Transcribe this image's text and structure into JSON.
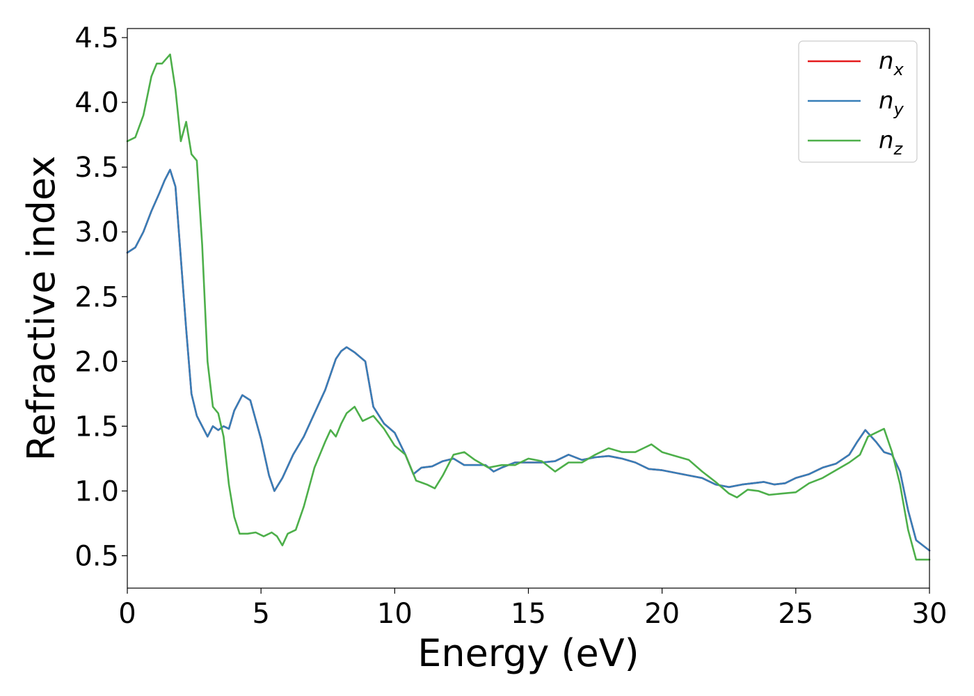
{
  "chart_data": {
    "type": "line",
    "xlabel": "Energy (eV)",
    "ylabel": "Refractive index",
    "xlim": [
      0,
      30
    ],
    "ylim": [
      0.25,
      4.57
    ],
    "xticks": [
      0,
      5,
      10,
      15,
      20,
      25,
      30
    ],
    "xtick_labels": [
      "0",
      "5",
      "10",
      "15",
      "20",
      "25",
      "30"
    ],
    "yticks": [
      0.5,
      1.0,
      1.5,
      2.0,
      2.5,
      3.0,
      3.5,
      4.0,
      4.5
    ],
    "ytick_labels": [
      "0.5",
      "1.0",
      "1.5",
      "2.0",
      "2.5",
      "3.0",
      "3.5",
      "4.0",
      "4.5"
    ],
    "grid": false,
    "legend_position": "top-right",
    "series": [
      {
        "name": "n",
        "subscript": "x",
        "color": "#e41a1c",
        "x": [
          0,
          0.3,
          0.6,
          0.9,
          1.2,
          1.4,
          1.6,
          1.8,
          2.0,
          2.2,
          2.4,
          2.6,
          2.8,
          3.0,
          3.2,
          3.4,
          3.6,
          3.8,
          4.0,
          4.3,
          4.6,
          5.0,
          5.3,
          5.5,
          5.8,
          6.2,
          6.6,
          7.0,
          7.4,
          7.8,
          8.0,
          8.2,
          8.5,
          8.9,
          9.2,
          9.6,
          10.0,
          10.4,
          10.7,
          11.0,
          11.4,
          11.8,
          12.2,
          12.6,
          13.0,
          13.4,
          13.7,
          14.0,
          14.5,
          15.0,
          15.5,
          16.0,
          16.5,
          17.0,
          17.5,
          18.0,
          18.5,
          19.0,
          19.5,
          20.0,
          20.5,
          21.0,
          21.5,
          22.0,
          22.5,
          23.0,
          23.4,
          23.8,
          24.2,
          24.6,
          25.0,
          25.5,
          26.0,
          26.5,
          27.0,
          27.3,
          27.6,
          28.0,
          28.3,
          28.6,
          28.9,
          29.2,
          29.5,
          30.0
        ],
        "y": [
          2.84,
          2.88,
          3.0,
          3.16,
          3.3,
          3.4,
          3.48,
          3.35,
          2.8,
          2.25,
          1.75,
          1.58,
          1.5,
          1.42,
          1.5,
          1.47,
          1.5,
          1.48,
          1.62,
          1.74,
          1.7,
          1.4,
          1.12,
          1.0,
          1.1,
          1.28,
          1.42,
          1.6,
          1.78,
          2.02,
          2.08,
          2.11,
          2.07,
          2.0,
          1.65,
          1.52,
          1.45,
          1.28,
          1.13,
          1.18,
          1.19,
          1.23,
          1.25,
          1.2,
          1.2,
          1.2,
          1.15,
          1.18,
          1.22,
          1.22,
          1.22,
          1.23,
          1.28,
          1.24,
          1.26,
          1.27,
          1.25,
          1.22,
          1.17,
          1.16,
          1.14,
          1.12,
          1.1,
          1.05,
          1.03,
          1.05,
          1.06,
          1.07,
          1.05,
          1.06,
          1.1,
          1.13,
          1.18,
          1.21,
          1.28,
          1.38,
          1.47,
          1.38,
          1.3,
          1.28,
          1.15,
          0.85,
          0.62,
          0.54
        ]
      },
      {
        "name": "n",
        "subscript": "y",
        "color": "#377eb8",
        "x": [
          0,
          0.3,
          0.6,
          0.9,
          1.2,
          1.4,
          1.6,
          1.8,
          2.0,
          2.2,
          2.4,
          2.6,
          2.8,
          3.0,
          3.2,
          3.4,
          3.6,
          3.8,
          4.0,
          4.3,
          4.6,
          5.0,
          5.3,
          5.5,
          5.8,
          6.2,
          6.6,
          7.0,
          7.4,
          7.8,
          8.0,
          8.2,
          8.5,
          8.9,
          9.2,
          9.6,
          10.0,
          10.4,
          10.7,
          11.0,
          11.4,
          11.8,
          12.2,
          12.6,
          13.0,
          13.4,
          13.7,
          14.0,
          14.5,
          15.0,
          15.5,
          16.0,
          16.5,
          17.0,
          17.5,
          18.0,
          18.5,
          19.0,
          19.5,
          20.0,
          20.5,
          21.0,
          21.5,
          22.0,
          22.5,
          23.0,
          23.4,
          23.8,
          24.2,
          24.6,
          25.0,
          25.5,
          26.0,
          26.5,
          27.0,
          27.3,
          27.6,
          28.0,
          28.3,
          28.6,
          28.9,
          29.2,
          29.5,
          30.0
        ],
        "y": [
          2.84,
          2.88,
          3.0,
          3.16,
          3.3,
          3.4,
          3.48,
          3.35,
          2.8,
          2.25,
          1.75,
          1.58,
          1.5,
          1.42,
          1.5,
          1.47,
          1.5,
          1.48,
          1.62,
          1.74,
          1.7,
          1.4,
          1.12,
          1.0,
          1.1,
          1.28,
          1.42,
          1.6,
          1.78,
          2.02,
          2.08,
          2.11,
          2.07,
          2.0,
          1.65,
          1.52,
          1.45,
          1.28,
          1.13,
          1.18,
          1.19,
          1.23,
          1.25,
          1.2,
          1.2,
          1.2,
          1.15,
          1.18,
          1.22,
          1.22,
          1.22,
          1.23,
          1.28,
          1.24,
          1.26,
          1.27,
          1.25,
          1.22,
          1.17,
          1.16,
          1.14,
          1.12,
          1.1,
          1.05,
          1.03,
          1.05,
          1.06,
          1.07,
          1.05,
          1.06,
          1.1,
          1.13,
          1.18,
          1.21,
          1.28,
          1.38,
          1.47,
          1.38,
          1.3,
          1.28,
          1.15,
          0.85,
          0.62,
          0.54
        ]
      },
      {
        "name": "n",
        "subscript": "z",
        "color": "#4daf4a",
        "x": [
          0,
          0.3,
          0.6,
          0.9,
          1.1,
          1.3,
          1.6,
          1.8,
          2.0,
          2.2,
          2.4,
          2.6,
          2.8,
          3.0,
          3.2,
          3.4,
          3.6,
          3.8,
          4.0,
          4.2,
          4.5,
          4.8,
          5.1,
          5.4,
          5.6,
          5.8,
          6.0,
          6.3,
          6.6,
          7.0,
          7.4,
          7.6,
          7.8,
          8.0,
          8.2,
          8.5,
          8.8,
          9.2,
          9.6,
          10.0,
          10.4,
          10.8,
          11.2,
          11.5,
          11.8,
          12.2,
          12.6,
          13.0,
          13.5,
          14.0,
          14.5,
          15.0,
          15.5,
          16.0,
          16.5,
          17.0,
          17.5,
          18.0,
          18.5,
          19.0,
          19.3,
          19.6,
          20.0,
          20.5,
          21.0,
          21.5,
          22.0,
          22.5,
          22.8,
          23.2,
          23.6,
          24.0,
          24.5,
          25.0,
          25.5,
          26.0,
          26.5,
          27.0,
          27.4,
          27.7,
          28.0,
          28.3,
          28.6,
          28.9,
          29.2,
          29.5,
          30.0
        ],
        "y": [
          3.7,
          3.73,
          3.9,
          4.2,
          4.3,
          4.3,
          4.37,
          4.1,
          3.7,
          3.85,
          3.6,
          3.55,
          2.9,
          2.0,
          1.65,
          1.6,
          1.42,
          1.05,
          0.8,
          0.67,
          0.67,
          0.68,
          0.65,
          0.68,
          0.65,
          0.58,
          0.67,
          0.7,
          0.88,
          1.18,
          1.38,
          1.47,
          1.42,
          1.52,
          1.6,
          1.65,
          1.54,
          1.58,
          1.48,
          1.35,
          1.28,
          1.08,
          1.05,
          1.02,
          1.12,
          1.28,
          1.3,
          1.24,
          1.18,
          1.2,
          1.2,
          1.25,
          1.23,
          1.15,
          1.22,
          1.22,
          1.28,
          1.33,
          1.3,
          1.3,
          1.33,
          1.36,
          1.3,
          1.27,
          1.24,
          1.15,
          1.07,
          0.98,
          0.95,
          1.01,
          1.0,
          0.97,
          0.98,
          0.99,
          1.06,
          1.1,
          1.16,
          1.22,
          1.28,
          1.42,
          1.45,
          1.48,
          1.3,
          1.05,
          0.7,
          0.47,
          0.47
        ]
      }
    ]
  }
}
